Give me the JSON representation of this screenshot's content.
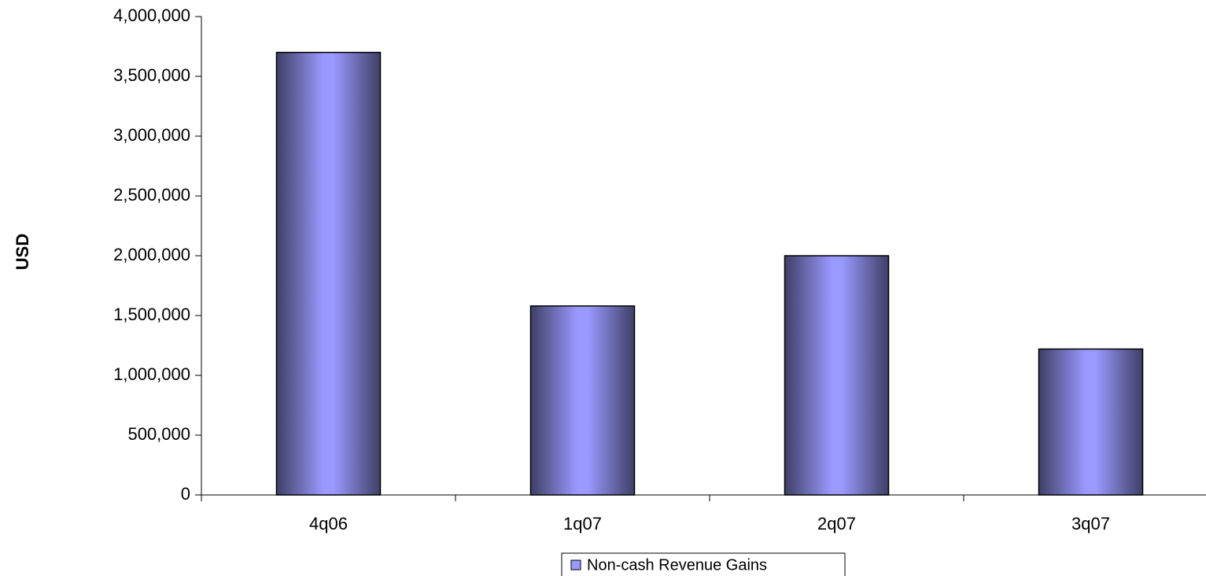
{
  "chart_data": {
    "type": "bar",
    "y_label": "USD",
    "categories": [
      "4q06",
      "1q07",
      "2q07",
      "3q07"
    ],
    "series": [
      {
        "name": "Non-cash Revenue Gains",
        "color": "#9999ff",
        "values": [
          3700000,
          1580000,
          2000000,
          1220000
        ]
      }
    ],
    "ylim": [
      0,
      4000000
    ],
    "yticks": [
      0,
      {
        "value": 500000,
        "label": "500,000"
      },
      {
        "value": 1000000,
        "label": "1,000,000"
      },
      {
        "value": 1500000,
        "label": "1,500,000"
      },
      {
        "value": 2000000,
        "label": "2,000,000"
      },
      {
        "value": 2500000,
        "label": "2,500,000"
      },
      {
        "value": 3000000,
        "label": "3,000,000"
      },
      {
        "value": 3500000,
        "label": "3,500,000"
      },
      {
        "value": 4000000,
        "label": "4,000,000"
      }
    ],
    "legend": "bottom"
  }
}
